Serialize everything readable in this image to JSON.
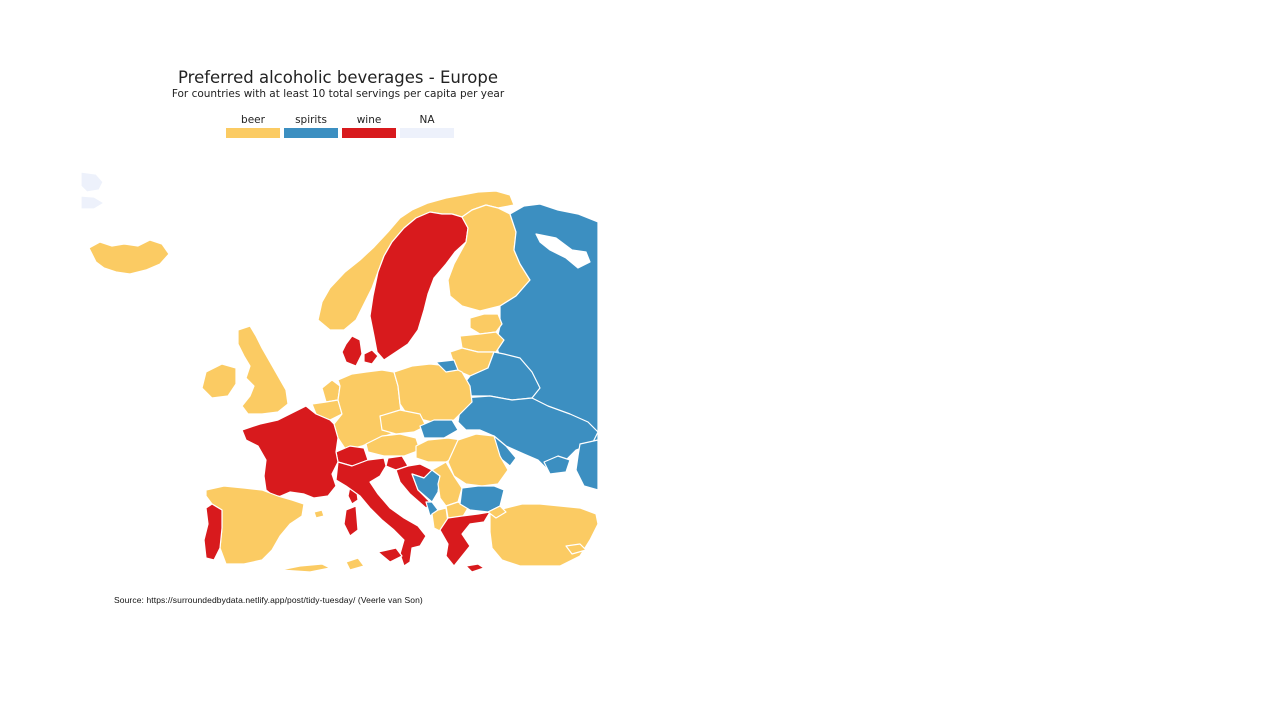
{
  "title": "Preferred alcoholic beverages - Europe",
  "subtitle": "For countries with at least 10 total servings per capita per year",
  "legend": [
    {
      "label": "beer",
      "color": "#fbcb63"
    },
    {
      "label": "spirits",
      "color": "#3c8fc1"
    },
    {
      "label": "wine",
      "color": "#d81a1d"
    },
    {
      "label": "NA",
      "color": "#edf1fb"
    }
  ],
  "colors": {
    "beer": "#fbcb63",
    "spirits": "#3c8fc1",
    "wine": "#d81a1d",
    "na": "#edf1fb",
    "border": "#ffffff"
  },
  "source": "Source: https://surroundedbydata.netlify.app/post/tidy-tuesday/ (Veerle van Son)"
}
